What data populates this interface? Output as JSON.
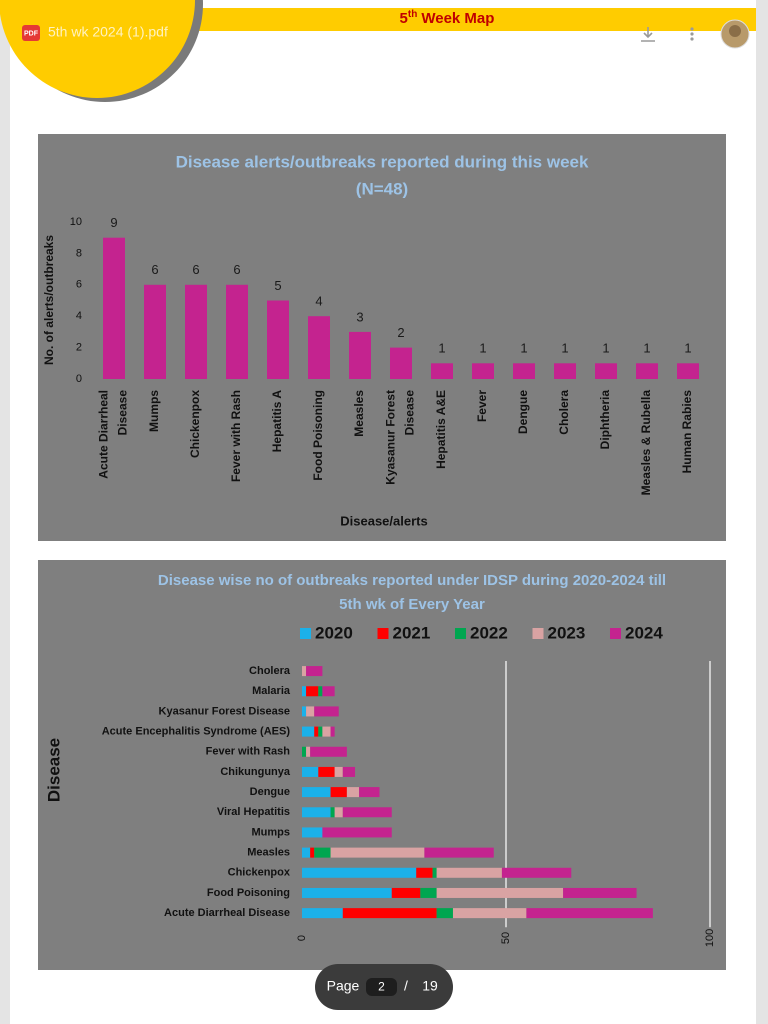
{
  "header": {
    "title_number": "5",
    "title_suffix": "th",
    "title_text": "Week Map"
  },
  "viewer": {
    "file_badge": "PDF",
    "file_name": "5th wk 2024 (1).pdf",
    "page_label": "Page",
    "page_current": 2,
    "page_separator": "/",
    "page_total": 19
  },
  "chart_data": [
    {
      "type": "bar",
      "title": "Disease alerts/outbreaks reported during this week",
      "subtitle": "(N=48)",
      "y_label": "No. of alerts/outbreaks",
      "x_label": "Disease/alerts",
      "categories": [
        "Acute Diarrheal Disease",
        "Mumps",
        "Chickenpox",
        "Fever with Rash",
        "Hepatitis A",
        "Food Poisoning",
        "Measles",
        "Kyasanur Forest Disease",
        "Hepatitis A&E",
        "Fever",
        "Dengue",
        "Cholera",
        "Diphtheria",
        "Measles & Rubella",
        "Human Rabies"
      ],
      "values": [
        9,
        6,
        6,
        6,
        5,
        4,
        3,
        2,
        1,
        1,
        1,
        1,
        1,
        1,
        1
      ],
      "color": "#c4238f",
      "ylim": [
        0,
        10
      ],
      "yticks": [
        0,
        2,
        4,
        6,
        8,
        10
      ],
      "grid": false
    },
    {
      "type": "barh",
      "stacked": true,
      "title": "Disease wise no of outbreaks reported under IDSP during  2020-2024 till",
      "subtitle": "5th wk of Every Year",
      "y_label": "Disease",
      "categories": [
        "Cholera",
        "Malaria",
        "Kyasanur Forest Disease",
        "Acute Encephalitis Syndrome (AES)",
        "Fever with Rash",
        "Chikungunya",
        "Dengue",
        "Viral Hepatitis",
        "Mumps",
        "Measles",
        "Chickenpox",
        "Food Poisoning",
        "Acute Diarrheal Disease"
      ],
      "series": [
        {
          "name": "2020",
          "color": "#1bb1e9",
          "values": [
            0,
            1,
            1,
            3,
            0,
            4,
            7,
            7,
            5,
            2,
            28,
            22,
            10
          ]
        },
        {
          "name": "2021",
          "color": "#ff0000",
          "values": [
            0,
            3,
            0,
            1,
            0,
            4,
            4,
            0,
            0,
            1,
            4,
            7,
            23
          ]
        },
        {
          "name": "2022",
          "color": "#00a650",
          "values": [
            0,
            1,
            0,
            1,
            1,
            0,
            0,
            1,
            0,
            4,
            1,
            4,
            4
          ]
        },
        {
          "name": "2023",
          "color": "#d9a3a3",
          "values": [
            1,
            0,
            2,
            2,
            1,
            2,
            3,
            2,
            0,
            23,
            16,
            31,
            18
          ]
        },
        {
          "name": "2024",
          "color": "#c4238f",
          "values": [
            4,
            3,
            6,
            1,
            9,
            3,
            5,
            12,
            17,
            17,
            17,
            18,
            31
          ]
        }
      ],
      "xlim": [
        0,
        100
      ],
      "xticks": [
        0,
        50,
        100
      ],
      "grid": true,
      "legend": "top"
    }
  ]
}
